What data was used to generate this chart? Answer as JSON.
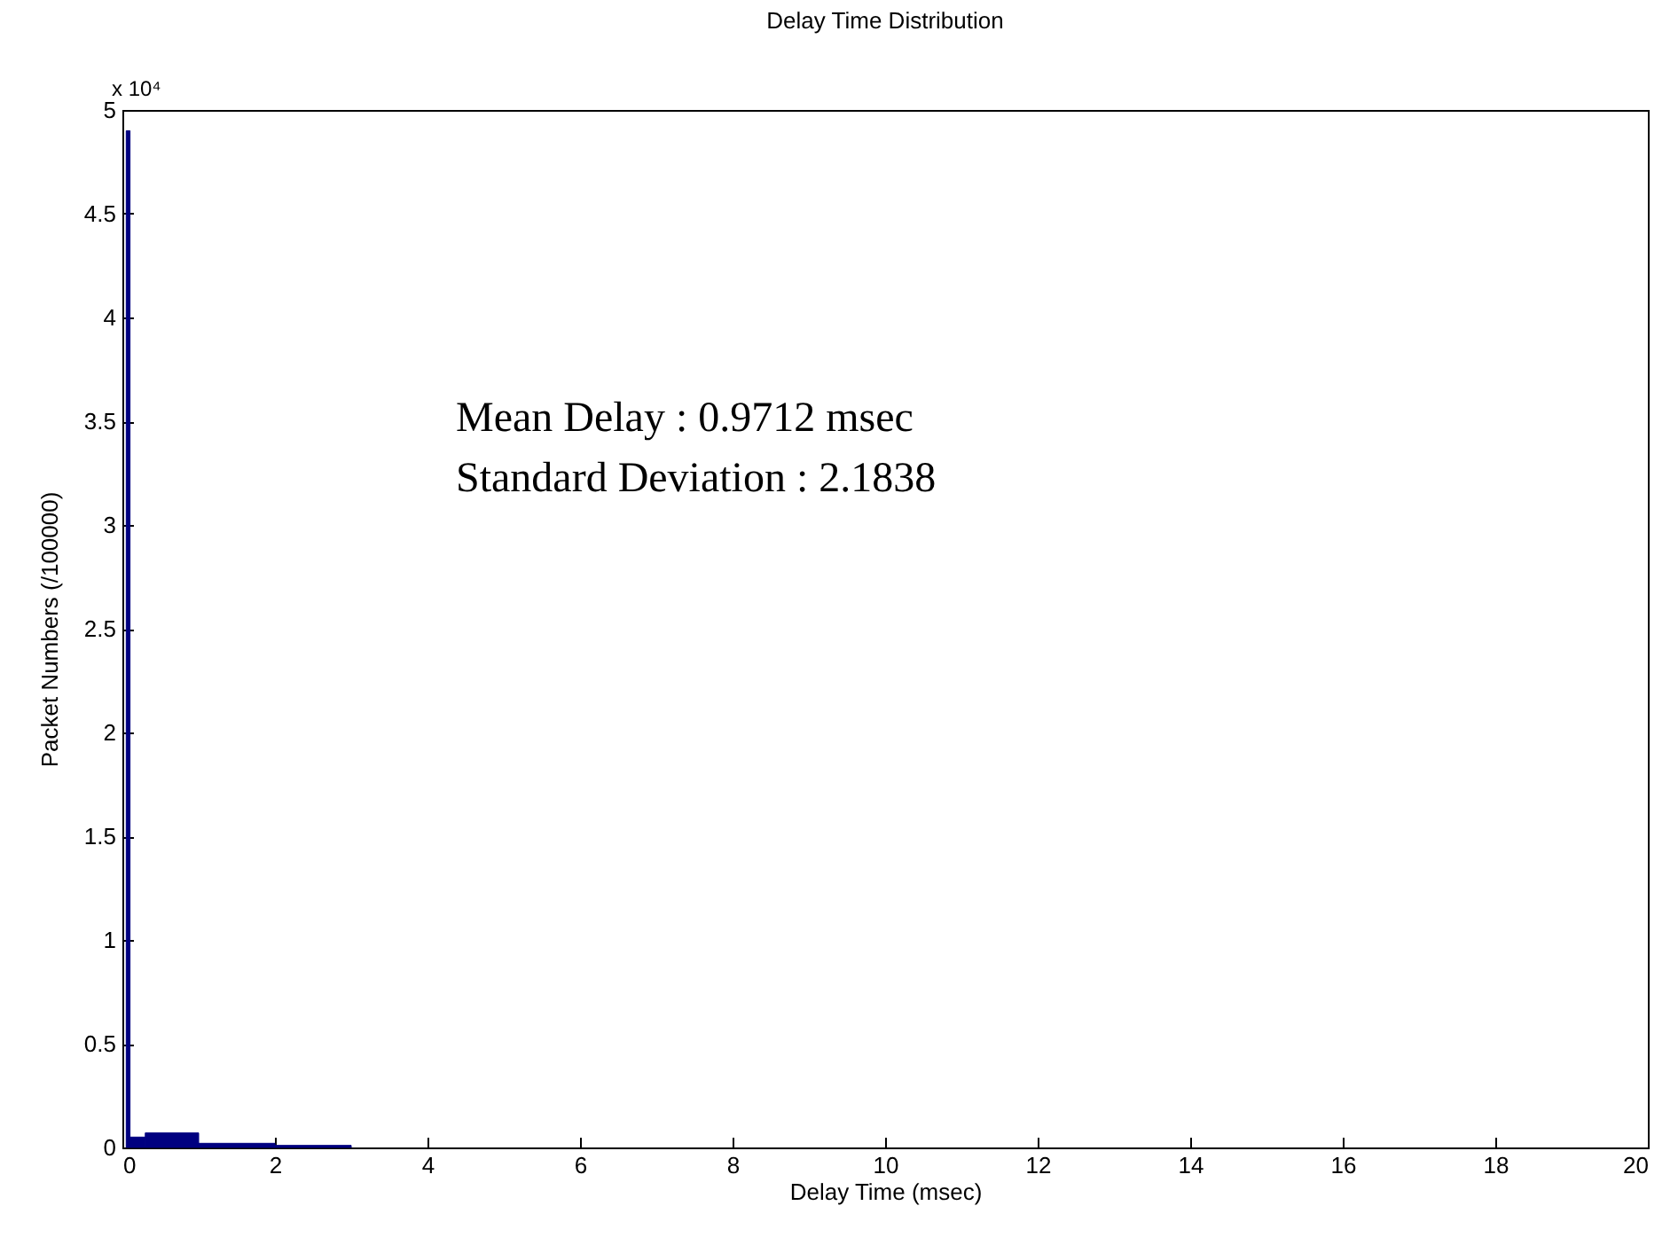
{
  "chart_data": {
    "type": "histogram",
    "title": "Delay Time Distribution",
    "xlabel": "Delay Time (msec)",
    "ylabel": "Packet Numbers (/100000)",
    "bins": [
      0.05,
      0.1,
      0.3,
      1.0,
      2.0,
      3.0
    ],
    "values": [
      4.9,
      0.05,
      0.07,
      0.02,
      0.01
    ],
    "color": "#000080",
    "xlim": [
      0,
      20
    ],
    "xticks": [
      0,
      2,
      4,
      6,
      8,
      10,
      12,
      14,
      16,
      18,
      20
    ],
    "ylim": [
      0,
      5
    ],
    "yticks": [
      0,
      0.5,
      1,
      1.5,
      2,
      2.5,
      3,
      3.5,
      4,
      4.5,
      5
    ],
    "annotations": [
      "x 10⁴",
      "Mean Delay : 0.9712 msec",
      "Standard Deviation : 2.1838"
    ],
    "grid": false
  }
}
